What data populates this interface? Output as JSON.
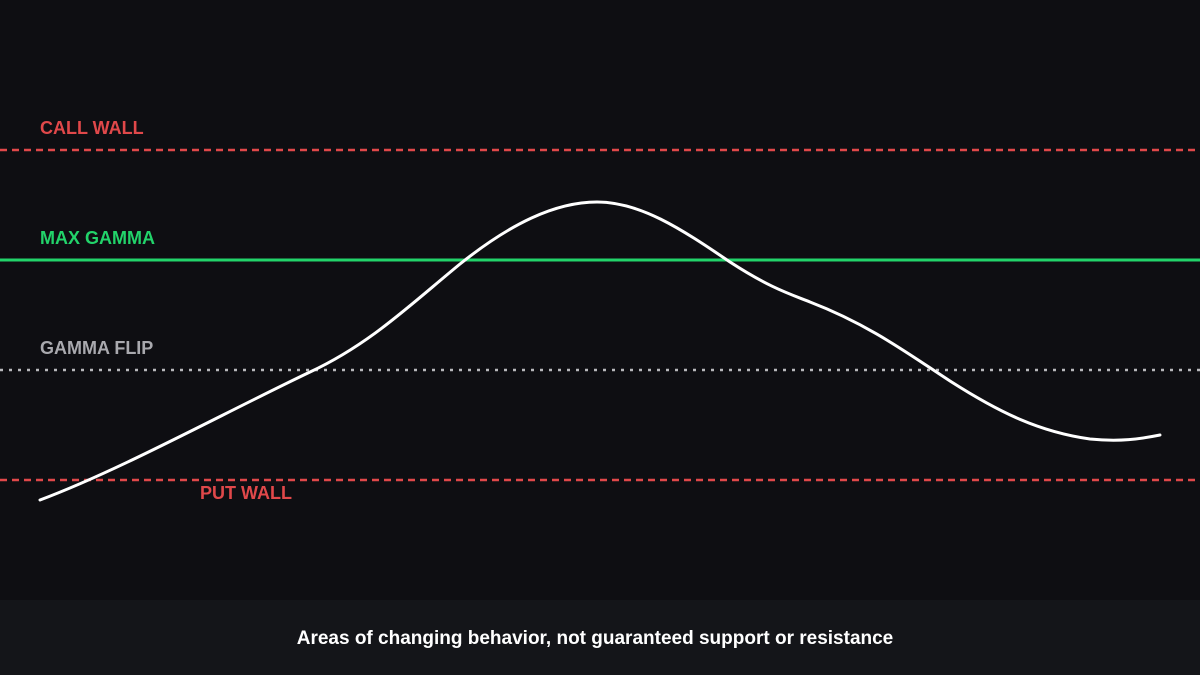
{
  "levels": [
    {
      "label": "CALL WALL"
    },
    {
      "label": "MAX GAMMA"
    },
    {
      "label": "GAMMA FLIP"
    },
    {
      "label": "PUT WALL"
    }
  ],
  "caption": "Areas of changing behavior, not guaranteed support or resistance"
}
